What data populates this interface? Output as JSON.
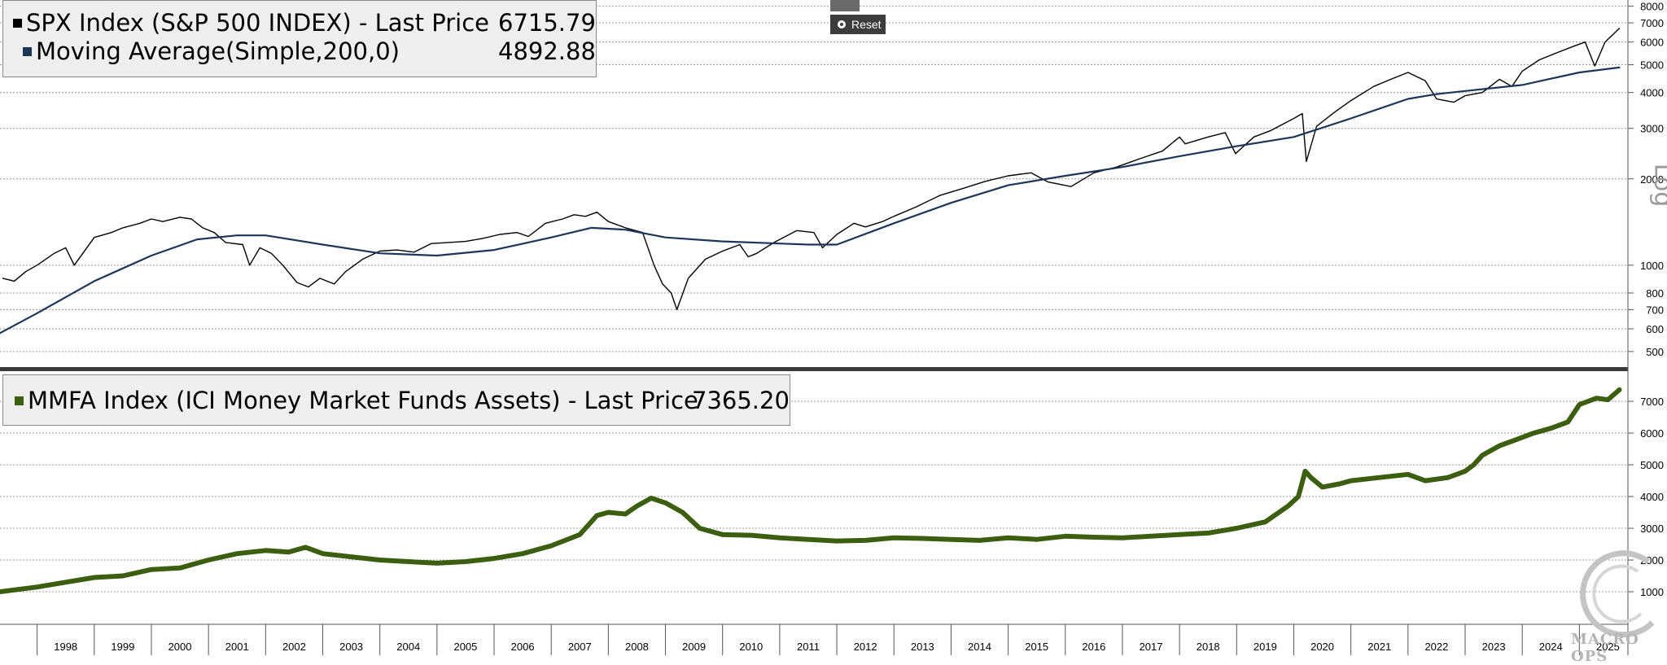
{
  "ui": {
    "reset_label": "Reset",
    "scale_label": "Log",
    "watermark": "MACRO OPS"
  },
  "legend_top": {
    "series1_label": "SPX Index (S&P 500 INDEX) - Last Price",
    "series1_value": "6715.79",
    "series2_label": "Moving Average(Simple,200,0)",
    "series2_value": "4892.88"
  },
  "legend_bottom": {
    "series1_label": "MMFA Index (ICI Money Market Funds Assets) - Last Price",
    "series1_value": "7365.20"
  },
  "colors": {
    "spx": "#000000",
    "ma": "#1d3557",
    "mmfa": "#3b5e10",
    "grid": "#9a9a9a",
    "divider": "#3a3a3a"
  },
  "chart_data": [
    {
      "type": "line",
      "title": "SPX Index (S&P 500 INDEX) - Last Price",
      "yscale": "log",
      "ylim": [
        450,
        8300
      ],
      "yticks": [
        500,
        600,
        700,
        800,
        1000,
        2000,
        3000,
        4000,
        5000,
        6000,
        7000,
        8000
      ],
      "xlim": [
        1997.35,
        2025.85
      ],
      "series": [
        {
          "name": "SPX Index",
          "color": "#000000",
          "x": [
            1997.4,
            1997.6,
            1997.8,
            1998.0,
            1998.3,
            1998.5,
            1998.65,
            1998.8,
            1999.0,
            1999.3,
            1999.5,
            1999.8,
            2000.0,
            2000.2,
            2000.5,
            2000.7,
            2000.9,
            2001.1,
            2001.3,
            2001.6,
            2001.72,
            2001.9,
            2002.1,
            2002.3,
            2002.55,
            2002.75,
            2002.95,
            2003.2,
            2003.4,
            2003.7,
            2004.0,
            2004.3,
            2004.6,
            2004.9,
            2005.2,
            2005.5,
            2005.8,
            2006.1,
            2006.4,
            2006.6,
            2006.9,
            2007.2,
            2007.4,
            2007.6,
            2007.8,
            2008.0,
            2008.3,
            2008.6,
            2008.8,
            2008.95,
            2009.1,
            2009.2,
            2009.4,
            2009.7,
            2010.0,
            2010.3,
            2010.45,
            2010.6,
            2010.9,
            2011.3,
            2011.6,
            2011.75,
            2012.0,
            2012.3,
            2012.5,
            2012.8,
            2013.0,
            2013.4,
            2013.8,
            2014.2,
            2014.6,
            2015.0,
            2015.4,
            2015.7,
            2016.1,
            2016.5,
            2016.9,
            2017.3,
            2017.7,
            2018.0,
            2018.1,
            2018.5,
            2018.8,
            2018.98,
            2019.3,
            2019.6,
            2020.0,
            2020.15,
            2020.22,
            2020.4,
            2020.7,
            2021.0,
            2021.4,
            2021.7,
            2022.0,
            2022.3,
            2022.5,
            2022.8,
            2023.0,
            2023.3,
            2023.6,
            2023.82,
            2024.0,
            2024.3,
            2024.6,
            2024.9,
            2025.1,
            2025.27,
            2025.45,
            2025.7
          ],
          "values": [
            900,
            880,
            950,
            1000,
            1100,
            1150,
            1000,
            1100,
            1250,
            1300,
            1350,
            1400,
            1450,
            1420,
            1470,
            1450,
            1350,
            1300,
            1200,
            1180,
            1000,
            1150,
            1100,
            1000,
            870,
            840,
            900,
            860,
            950,
            1050,
            1120,
            1130,
            1110,
            1190,
            1200,
            1210,
            1240,
            1280,
            1300,
            1260,
            1400,
            1450,
            1500,
            1480,
            1530,
            1420,
            1350,
            1300,
            1000,
            860,
            800,
            700,
            900,
            1050,
            1120,
            1180,
            1070,
            1100,
            1200,
            1320,
            1300,
            1150,
            1280,
            1400,
            1360,
            1420,
            1480,
            1600,
            1750,
            1850,
            1960,
            2050,
            2100,
            1950,
            1880,
            2100,
            2200,
            2350,
            2500,
            2800,
            2650,
            2800,
            2900,
            2450,
            2800,
            2950,
            3250,
            3380,
            2300,
            3050,
            3400,
            3750,
            4200,
            4450,
            4700,
            4400,
            3800,
            3700,
            3900,
            4000,
            4450,
            4200,
            4750,
            5200,
            5500,
            5800,
            6000,
            4950,
            6000,
            6700
          ]
        },
        {
          "name": "Moving Average(Simple,200,0)",
          "color": "#1d3557",
          "x": [
            1997.35,
            1998.0,
            1999.0,
            2000.0,
            2000.8,
            2001.5,
            2002.0,
            2003.0,
            2004.0,
            2005.0,
            2006.0,
            2007.0,
            2007.7,
            2008.3,
            2009.0,
            2010.0,
            2011.0,
            2011.5,
            2012.0,
            2013.0,
            2014.0,
            2015.0,
            2016.0,
            2017.0,
            2018.0,
            2019.0,
            2020.0,
            2021.0,
            2022.0,
            2022.5,
            2023.0,
            2024.0,
            2025.0,
            2025.7
          ],
          "values": [
            580,
            680,
            880,
            1080,
            1230,
            1270,
            1270,
            1180,
            1100,
            1080,
            1130,
            1250,
            1350,
            1330,
            1250,
            1210,
            1190,
            1180,
            1180,
            1400,
            1650,
            1900,
            2050,
            2200,
            2400,
            2600,
            2800,
            3250,
            3800,
            3950,
            4050,
            4250,
            4700,
            4893
          ]
        }
      ]
    },
    {
      "type": "line",
      "title": "MMFA Index (ICI Money Market Funds Assets) - Last Price",
      "ylim": [
        0,
        7900
      ],
      "yticks": [
        1000,
        2000,
        3000,
        4000,
        5000,
        6000,
        7000
      ],
      "xlim": [
        1997.35,
        2025.85
      ],
      "series": [
        {
          "name": "MMFA Index",
          "color": "#3b5e10",
          "x": [
            1997.35,
            1998.0,
            1998.5,
            1999.0,
            1999.5,
            2000.0,
            2000.5,
            2001.0,
            2001.5,
            2002.0,
            2002.4,
            2002.7,
            2003.0,
            2003.5,
            2004.0,
            2004.5,
            2005.0,
            2005.5,
            2006.0,
            2006.5,
            2007.0,
            2007.5,
            2007.8,
            2008.0,
            2008.3,
            2008.5,
            2008.75,
            2009.0,
            2009.3,
            2009.6,
            2010.0,
            2010.5,
            2011.0,
            2011.5,
            2012.0,
            2012.5,
            2013.0,
            2013.5,
            2014.0,
            2014.5,
            2015.0,
            2015.5,
            2016.0,
            2016.5,
            2017.0,
            2017.5,
            2018.0,
            2018.5,
            2019.0,
            2019.5,
            2019.9,
            2020.08,
            2020.2,
            2020.3,
            2020.5,
            2020.8,
            2021.0,
            2021.5,
            2022.0,
            2022.3,
            2022.7,
            2023.0,
            2023.15,
            2023.3,
            2023.6,
            2023.9,
            2024.2,
            2024.5,
            2024.8,
            2025.0,
            2025.3,
            2025.5,
            2025.7
          ],
          "values": [
            1000,
            1150,
            1300,
            1450,
            1500,
            1700,
            1750,
            2000,
            2200,
            2300,
            2250,
            2400,
            2200,
            2100,
            2000,
            1950,
            1900,
            1950,
            2050,
            2200,
            2450,
            2800,
            3400,
            3500,
            3450,
            3700,
            3950,
            3800,
            3500,
            3000,
            2800,
            2780,
            2700,
            2650,
            2600,
            2620,
            2700,
            2680,
            2650,
            2620,
            2700,
            2650,
            2750,
            2720,
            2700,
            2750,
            2800,
            2850,
            3000,
            3200,
            3700,
            4000,
            4800,
            4600,
            4300,
            4400,
            4500,
            4600,
            4700,
            4500,
            4600,
            4800,
            5000,
            5300,
            5600,
            5800,
            6000,
            6150,
            6350,
            6900,
            7100,
            7050,
            7365
          ]
        }
      ]
    }
  ],
  "x_axis": {
    "years": [
      "1998",
      "1999",
      "2000",
      "2001",
      "2002",
      "2003",
      "2004",
      "2005",
      "2006",
      "2007",
      "2008",
      "2009",
      "2010",
      "2011",
      "2012",
      "2013",
      "2014",
      "2015",
      "2016",
      "2017",
      "2018",
      "2019",
      "2020",
      "2021",
      "2022",
      "2023",
      "2024",
      "2025"
    ]
  }
}
